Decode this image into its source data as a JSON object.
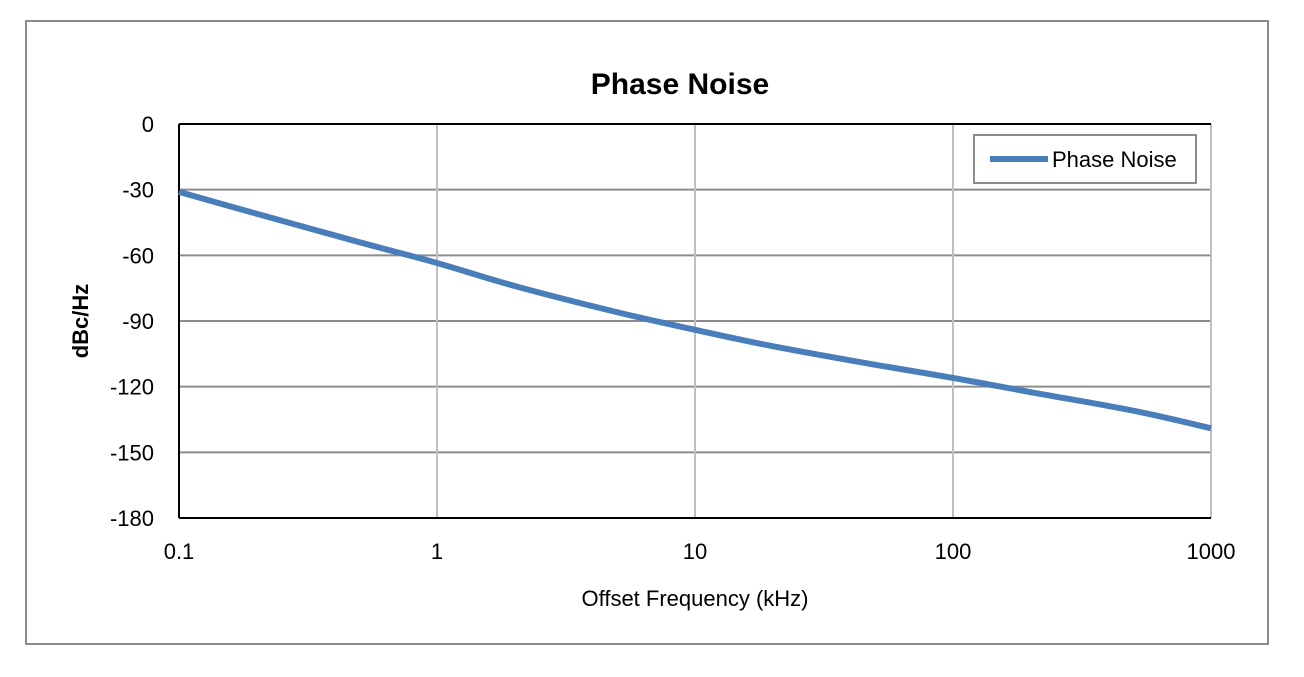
{
  "chart_data": {
    "type": "line",
    "title": "Phase Noise",
    "xlabel": "Offset Frequency (kHz)",
    "ylabel": "dBc/Hz",
    "x_scale": "log",
    "xlim": [
      0.1,
      1000
    ],
    "ylim": [
      -180,
      0
    ],
    "x_ticks": [
      "0.1",
      "1",
      "10",
      "100",
      "1000"
    ],
    "y_ticks": [
      "0",
      "-30",
      "-60",
      "-90",
      "-120",
      "-150",
      "-180"
    ],
    "grid": true,
    "legend_position": "top-right",
    "series": [
      {
        "name": "Phase Noise",
        "color": "#4a7ebb",
        "x": [
          0.1,
          0.2,
          0.5,
          1,
          2,
          5,
          10,
          20,
          50,
          100,
          200,
          500,
          1000
        ],
        "y": [
          -31,
          -41,
          -54,
          -63.5,
          -74,
          -86,
          -94,
          -101.5,
          -110,
          -116,
          -122.5,
          -131,
          -139
        ]
      }
    ]
  },
  "colors": {
    "frame": "#8c8c8c",
    "grid": "#bfbfbf",
    "axis": "#000000",
    "line": "#4a7ebb"
  }
}
